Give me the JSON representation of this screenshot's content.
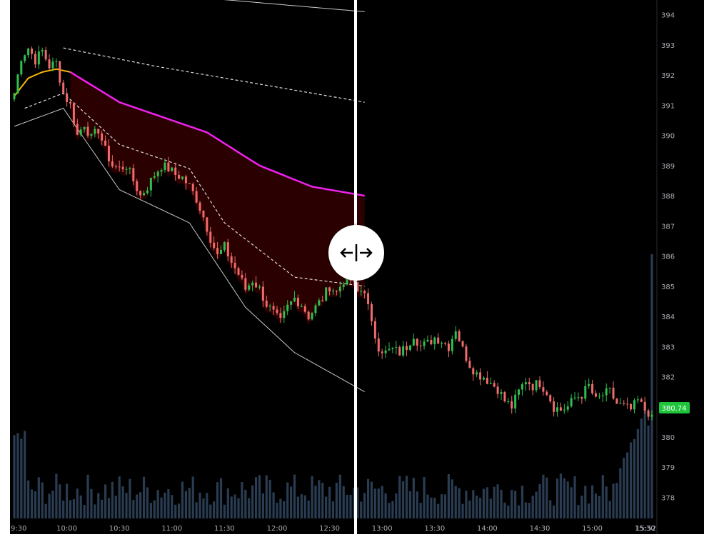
{
  "chart_data": {
    "type": "candlestick",
    "symbol_last_price": "380.74",
    "price_axis": {
      "ticks": [
        "378",
        "379",
        "380",
        "381",
        "382",
        "383",
        "384",
        "385",
        "386",
        "387",
        "388",
        "389",
        "390",
        "391",
        "392",
        "393",
        "394"
      ],
      "range": [
        377.3,
        394.3
      ]
    },
    "time_axis": {
      "ticks": [
        "9:30",
        "10:00",
        "10:30",
        "11:00",
        "11:30",
        "12:00",
        "12:30",
        "13:00",
        "13:30",
        "14:00",
        "14:30",
        "15:00",
        "15:30",
        "15:52"
      ]
    },
    "close_path": [
      [
        0,
        391.4
      ],
      [
        2,
        392.6
      ],
      [
        4,
        392.9
      ],
      [
        6,
        392.5
      ],
      [
        8,
        392.8
      ],
      [
        10,
        392.3
      ],
      [
        12,
        392.4
      ],
      [
        14,
        391.4
      ],
      [
        16,
        391.0
      ],
      [
        18,
        390.0
      ],
      [
        20,
        390.4
      ],
      [
        22,
        389.9
      ],
      [
        24,
        390.2
      ],
      [
        26,
        389.5
      ],
      [
        28,
        389.0
      ],
      [
        30,
        388.9
      ],
      [
        32,
        389.0
      ],
      [
        34,
        388.5
      ],
      [
        36,
        388.0
      ],
      [
        38,
        388.3
      ],
      [
        40,
        388.7
      ],
      [
        42,
        389.0
      ],
      [
        44,
        388.9
      ],
      [
        46,
        388.7
      ],
      [
        48,
        388.6
      ],
      [
        50,
        388.3
      ],
      [
        52,
        387.9
      ],
      [
        54,
        387.3
      ],
      [
        56,
        386.6
      ],
      [
        58,
        386.0
      ],
      [
        60,
        386.3
      ],
      [
        62,
        385.8
      ],
      [
        64,
        385.4
      ],
      [
        66,
        384.9
      ],
      [
        68,
        385.2
      ],
      [
        70,
        384.9
      ],
      [
        72,
        384.4
      ],
      [
        74,
        384.1
      ],
      [
        76,
        383.8
      ],
      [
        78,
        384.3
      ],
      [
        80,
        384.6
      ],
      [
        82,
        384.4
      ],
      [
        84,
        384.0
      ],
      [
        86,
        384.3
      ],
      [
        88,
        384.6
      ],
      [
        90,
        385.0
      ],
      [
        92,
        384.8
      ],
      [
        94,
        385.2
      ],
      [
        96,
        385.2
      ],
      [
        98,
        384.8
      ],
      [
        100,
        384.9
      ],
      [
        102,
        383.7
      ],
      [
        104,
        383.0
      ],
      [
        106,
        382.8
      ],
      [
        108,
        382.9
      ],
      [
        110,
        382.8
      ],
      [
        112,
        383.0
      ],
      [
        114,
        383.4
      ],
      [
        116,
        383.0
      ],
      [
        118,
        383.1
      ],
      [
        120,
        383.3
      ],
      [
        122,
        383.2
      ],
      [
        124,
        383.0
      ],
      [
        126,
        383.6
      ],
      [
        128,
        382.9
      ],
      [
        130,
        382.4
      ],
      [
        132,
        382.1
      ],
      [
        134,
        382.0
      ],
      [
        136,
        381.8
      ],
      [
        138,
        381.6
      ],
      [
        140,
        381.2
      ],
      [
        142,
        381.0
      ],
      [
        144,
        381.5
      ],
      [
        146,
        381.9
      ],
      [
        148,
        381.7
      ],
      [
        150,
        381.8
      ],
      [
        152,
        381.5
      ],
      [
        154,
        381.0
      ],
      [
        156,
        380.9
      ],
      [
        158,
        381.0
      ],
      [
        160,
        381.3
      ],
      [
        162,
        381.4
      ],
      [
        164,
        381.7
      ],
      [
        166,
        381.2
      ],
      [
        168,
        381.4
      ],
      [
        170,
        381.5
      ],
      [
        172,
        381.1
      ],
      [
        174,
        381.0
      ],
      [
        176,
        380.9
      ],
      [
        178,
        381.2
      ],
      [
        180,
        380.9
      ],
      [
        182,
        380.74
      ]
    ],
    "vwap_band_upper": [
      [
        0,
        395.0
      ],
      [
        30,
        395.2
      ],
      [
        60,
        394.5
      ],
      [
        100,
        394.1
      ]
    ],
    "vwap_band_outer_lower": [
      [
        0,
        390.3
      ],
      [
        14,
        390.9
      ],
      [
        30,
        388.2
      ],
      [
        50,
        387.1
      ],
      [
        66,
        384.3
      ],
      [
        80,
        382.8
      ],
      [
        100,
        381.5
      ]
    ],
    "vwap_dashed_upper": [
      [
        14,
        392.9
      ],
      [
        40,
        392.3
      ],
      [
        70,
        391.7
      ],
      [
        100,
        391.1
      ]
    ],
    "vwap_dashed_lower": [
      [
        3,
        390.9
      ],
      [
        14,
        391.4
      ],
      [
        30,
        389.7
      ],
      [
        50,
        388.9
      ],
      [
        60,
        387.1
      ],
      [
        80,
        385.3
      ],
      [
        100,
        385.0
      ]
    ],
    "avwap_magenta": [
      [
        16,
        392.1
      ],
      [
        30,
        391.1
      ],
      [
        40,
        390.7
      ],
      [
        55,
        390.1
      ],
      [
        70,
        389.0
      ],
      [
        85,
        388.3
      ],
      [
        100,
        388.0
      ]
    ],
    "avwap_yellow": [
      [
        0,
        391.3
      ],
      [
        4,
        391.9
      ],
      [
        8,
        392.1
      ],
      [
        12,
        392.2
      ],
      [
        16,
        392.1
      ]
    ],
    "split_index": 100,
    "current_volume_series_note": "",
    "colors": {
      "up": "#2fbf4f",
      "down": "#f06b6b",
      "magenta": "#ee22ee",
      "yellow": "#f5b800",
      "fill": "#2b0000",
      "volume": "#2a3c52",
      "last_price_bg": "#1ec53a",
      "band": "#c8c8c8"
    }
  },
  "ui": {
    "split_handle_icon": "split-arrows-icon"
  }
}
